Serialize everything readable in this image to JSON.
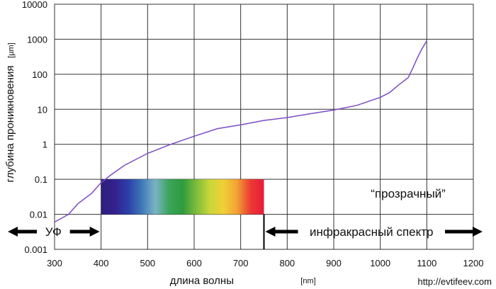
{
  "chart_data": {
    "type": "line",
    "x_unit": "[nm]",
    "y_unit": "[µm]",
    "xlim": [
      300,
      1200
    ],
    "ylim": [
      0.001,
      10000
    ],
    "y_scale": "log",
    "x_ticks": [
      "300",
      "400",
      "500",
      "600",
      "700",
      "800",
      "900",
      "1000",
      "1100",
      "1200"
    ],
    "y_ticks": [
      "0.001",
      "0.01",
      "0.1",
      "1",
      "10",
      "100",
      "1000",
      "10000"
    ],
    "grid": true,
    "series": [
      {
        "color": "#7d4bc4",
        "x": [
          300,
          330,
          350,
          380,
          400,
          420,
          450,
          500,
          550,
          600,
          650,
          700,
          750,
          800,
          850,
          900,
          950,
          1000,
          1020,
          1040,
          1060,
          1070,
          1080,
          1090,
          1100
        ],
        "y": [
          0.006,
          0.01,
          0.02,
          0.04,
          0.08,
          0.13,
          0.25,
          0.55,
          1.0,
          1.7,
          2.8,
          3.6,
          4.8,
          5.8,
          7.5,
          9.5,
          13.0,
          22.0,
          30.0,
          50.0,
          80.0,
          150.0,
          300.0,
          550.0,
          900.0
        ]
      }
    ],
    "annotations": {
      "uv": "УФ",
      "infrared": "инфракрасный спектр",
      "transparent": "“прозрачный”"
    },
    "spectrum": {
      "x_range": [
        400,
        750
      ],
      "y_range": [
        0.01,
        0.1
      ],
      "colors": [
        "#2e1f7a",
        "#33218f",
        "#2c3fa8",
        "#3f78b8",
        "#7bb3c5",
        "#3aa55b",
        "#2f9b3e",
        "#7dbb3c",
        "#c9d63a",
        "#f0d037",
        "#f2a233",
        "#ec3b33",
        "#e8193c"
      ]
    },
    "watermark": "http://evtifeev.com"
  },
  "labels": {
    "xlabel": "длина волны",
    "ylabel": "глубина проникновения"
  }
}
